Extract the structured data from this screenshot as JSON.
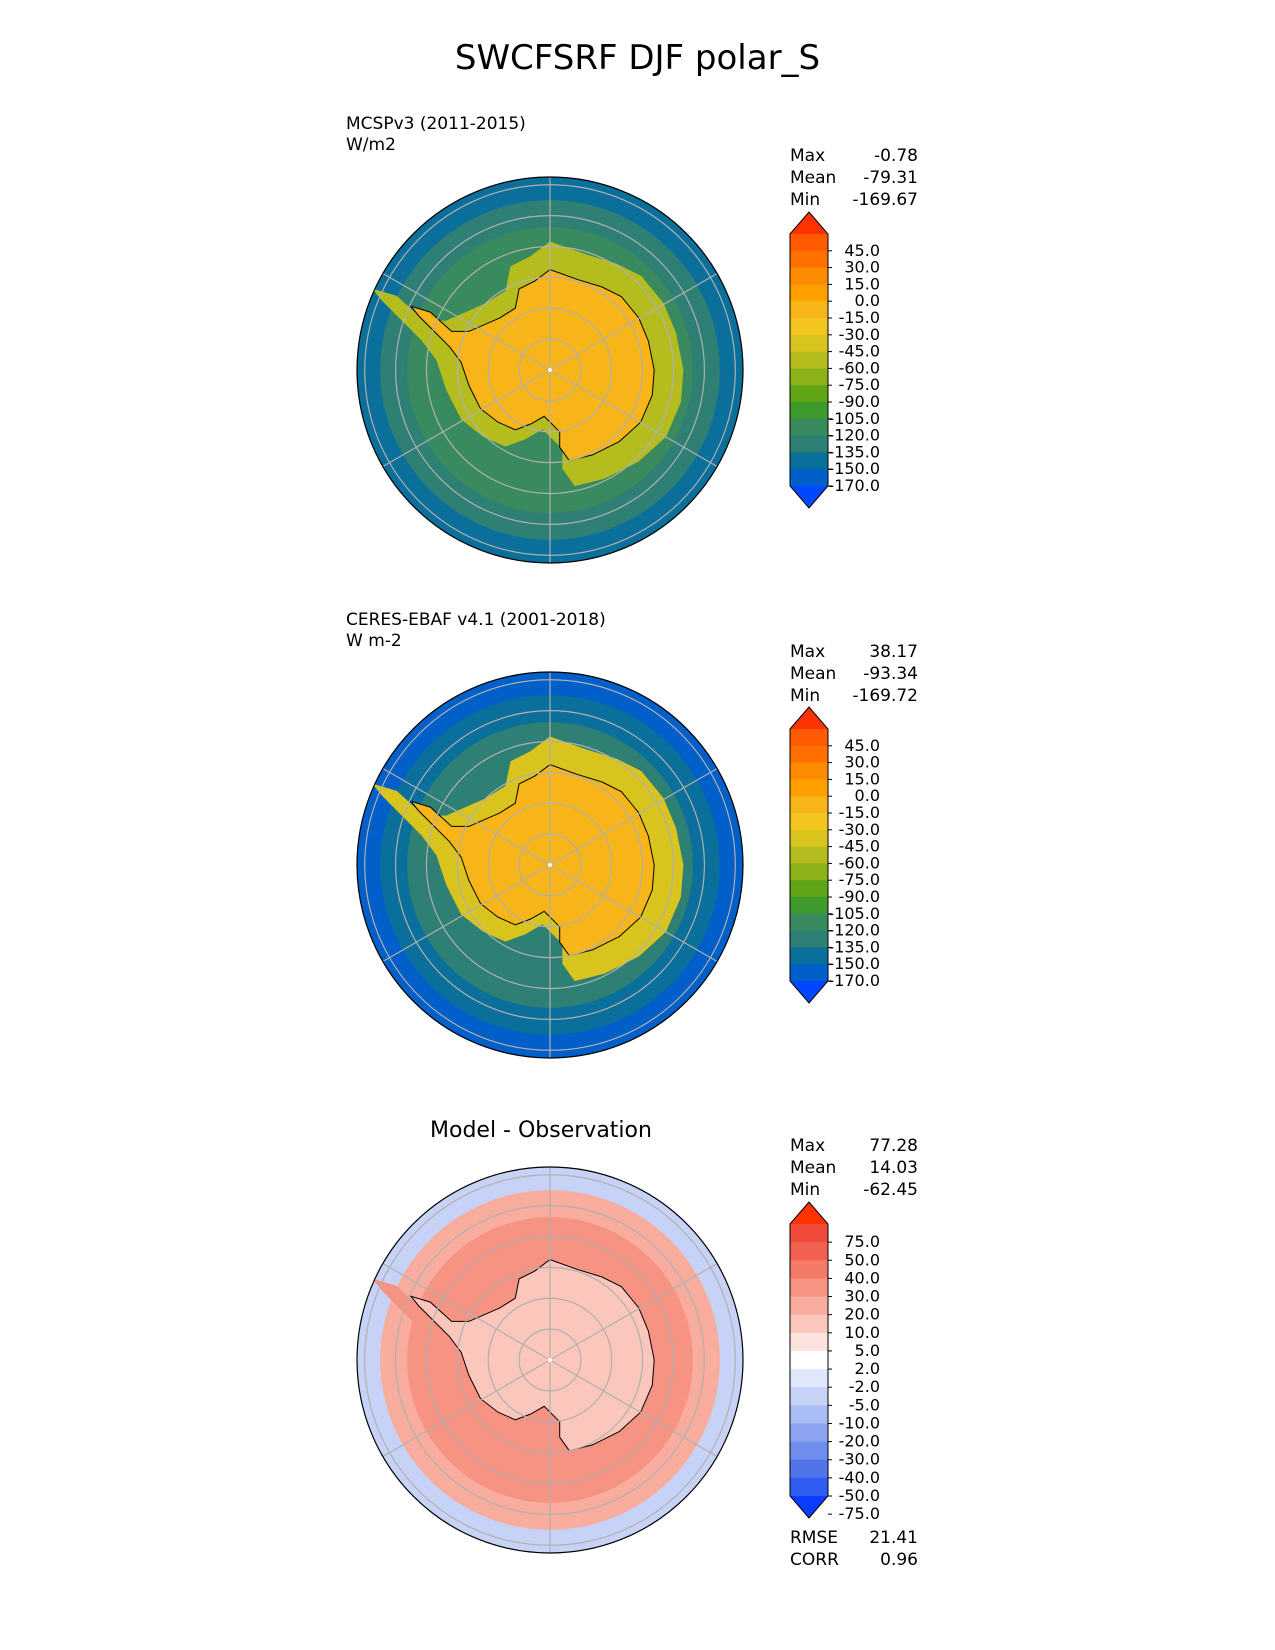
{
  "page_title": "SWCFSRF DJF polar_S",
  "panels": [
    {
      "name": "model",
      "label": "MCSPv3 (2011-2015)",
      "units": "W/m2",
      "heading": "",
      "stats": [
        {
          "label": "Max",
          "value": "-0.78"
        },
        {
          "label": "Mean",
          "value": "-79.31"
        },
        {
          "label": "Min",
          "value": "-169.67"
        }
      ]
    },
    {
      "name": "observation",
      "label": "CERES-EBAF v4.1 (2001-2018)",
      "units": "W m-2",
      "heading": "",
      "stats": [
        {
          "label": "Max",
          "value": "38.17"
        },
        {
          "label": "Mean",
          "value": "-93.34"
        },
        {
          "label": "Min",
          "value": "-169.72"
        }
      ]
    },
    {
      "name": "difference",
      "label": "",
      "units": "",
      "heading": "Model - Observation",
      "stats": [
        {
          "label": "Max",
          "value": "77.28"
        },
        {
          "label": "Mean",
          "value": "14.03"
        },
        {
          "label": "Min",
          "value": "-62.45"
        }
      ],
      "metrics": [
        {
          "label": "RMSE",
          "value": "21.41"
        },
        {
          "label": "CORR",
          "value": "0.96"
        }
      ]
    }
  ],
  "chart_data": [
    {
      "type": "heatmap",
      "title": "MCSPv3 (2011-2015)",
      "projection": "south polar stereographic",
      "grid": true,
      "colorbar": {
        "extend": "both",
        "tick_labels": [
          "45.0",
          "30.0",
          "15.0",
          "0.0",
          "-15.0",
          "-30.0",
          "-45.0",
          "-60.0",
          "-75.0",
          "-90.0",
          "-105.0",
          "-120.0",
          "-135.0",
          "-150.0",
          "-170.0"
        ],
        "colors": [
          "#ff3300",
          "#ff5a00",
          "#ff7000",
          "#ff8c00",
          "#ffa000",
          "#f7b51a",
          "#f3c61f",
          "#d9c41e",
          "#b5bd1e",
          "#8cb21a",
          "#5fa516",
          "#3f9a2e",
          "#398a5e",
          "#2e7f74",
          "#0a6f9a",
          "#005fc8",
          "#0047ff"
        ],
        "region_levels": {
          "land": "-15.0",
          "coast": "-60.0",
          "midlat": "-120.0",
          "ocean": "-135.0",
          "outer": "-150.0"
        }
      },
      "stats": {
        "max": -0.78,
        "mean": -79.31,
        "min": -169.67
      },
      "units": "W/m2"
    },
    {
      "type": "heatmap",
      "title": "CERES-EBAF v4.1 (2001-2018)",
      "projection": "south polar stereographic",
      "grid": true,
      "colorbar": {
        "extend": "both",
        "tick_labels": [
          "45.0",
          "30.0",
          "15.0",
          "0.0",
          "-15.0",
          "-30.0",
          "-45.0",
          "-60.0",
          "-75.0",
          "-90.0",
          "-105.0",
          "-120.0",
          "-135.0",
          "-150.0",
          "-170.0"
        ],
        "colors": [
          "#ff3300",
          "#ff5a00",
          "#ff7000",
          "#ff8c00",
          "#ffa000",
          "#f7b51a",
          "#f3c61f",
          "#d9c41e",
          "#b5bd1e",
          "#8cb21a",
          "#5fa516",
          "#3f9a2e",
          "#398a5e",
          "#2e7f74",
          "#0a6f9a",
          "#005fc8",
          "#0047ff"
        ],
        "region_levels": {
          "land": "-15.0",
          "coast": "-45.0",
          "midlat": "-135.0",
          "ocean": "-150.0",
          "outer": "-170.0"
        }
      },
      "stats": {
        "max": 38.17,
        "mean": -93.34,
        "min": -169.72
      },
      "units": "W m-2"
    },
    {
      "type": "heatmap",
      "title": "Model - Observation",
      "projection": "south polar stereographic",
      "grid": true,
      "colorbar": {
        "extend": "both",
        "tick_labels": [
          "75.0",
          "50.0",
          "40.0",
          "30.0",
          "20.0",
          "10.0",
          "5.0",
          "2.0",
          "-2.0",
          "-5.0",
          "-10.0",
          "-20.0",
          "-30.0",
          "-40.0",
          "-50.0",
          "-75.0"
        ],
        "colors": [
          "#ff3300",
          "#f04a3a",
          "#f26150",
          "#f47a68",
          "#f79383",
          "#f9ad9e",
          "#fbc7bd",
          "#fde3dd",
          "#ffffff",
          "#e2e8fb",
          "#c7d2f7",
          "#aabcf4",
          "#8da5f0",
          "#6f8ded",
          "#5174e9",
          "#2f5cf1",
          "#0b3cff"
        ],
        "region_levels": {
          "land": "10.0",
          "coast": "30.0",
          "midlat": "30.0",
          "ocean": "20.0",
          "outer": "-5.0"
        }
      },
      "stats": {
        "max": 77.28,
        "mean": 14.03,
        "min": -62.45
      },
      "metrics": {
        "rmse": 21.41,
        "corr": 0.96
      }
    }
  ]
}
